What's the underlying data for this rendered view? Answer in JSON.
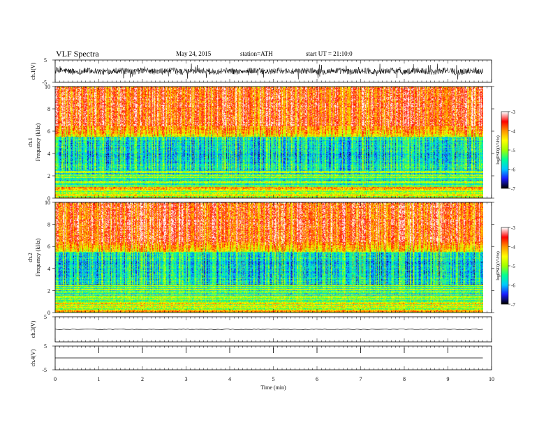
{
  "header": {
    "title": "VLF  Spectra",
    "date": "May 24, 2015",
    "station": "station=ATH",
    "start": "start  UT  =   21:10:0"
  },
  "chart_data": [
    {
      "type": "line",
      "id": "ch1",
      "ylabel": "ch.1(V)",
      "yticks": [
        "5",
        "-5"
      ],
      "ylim": [
        -5,
        5
      ],
      "description_of_signal": "noisy waveform oscillating roughly between -2 and 2 V"
    },
    {
      "type": "heatmap",
      "id": "ch1-spec",
      "ylabel": [
        "ch.1",
        "Frequency  (kHz)"
      ],
      "yticks": [
        "0",
        "2",
        "4",
        "6",
        "8",
        "10"
      ],
      "ylim": [
        0,
        10
      ],
      "colorbar": {
        "label": "log(PSD)(V²/Hz)",
        "ticks": [
          "-3",
          "-4",
          "-5",
          "-6",
          "-7"
        ],
        "range": [
          -7,
          -3
        ]
      }
    },
    {
      "type": "heatmap",
      "id": "ch2-spec",
      "ylabel": [
        "ch.2",
        "Frequency  (kHz)"
      ],
      "yticks": [
        "0",
        "2",
        "4",
        "6",
        "8",
        "10"
      ],
      "ylim": [
        0,
        10
      ],
      "colorbar": {
        "label": "log(PSD)(V²/Hz)",
        "ticks": [
          "-3",
          "-4",
          "-5",
          "-6",
          "-7"
        ],
        "range": [
          -7,
          -3
        ]
      }
    },
    {
      "type": "line",
      "id": "ch3",
      "ylabel": "ch.3(V)",
      "yticks": [
        "5"
      ],
      "ylim": [
        -5,
        5
      ],
      "level": 0
    },
    {
      "type": "line",
      "id": "ch4",
      "ylabel": "ch.4(V)",
      "yticks": [
        "5",
        "-5"
      ],
      "ylim": [
        -5,
        5
      ],
      "level": 0
    }
  ],
  "xaxis": {
    "label": "Time  (min)",
    "ticks": [
      "0",
      "1",
      "2",
      "3",
      "4",
      "5",
      "6",
      "7",
      "8",
      "9",
      "10"
    ],
    "xlim": [
      0,
      10
    ],
    "data_end": 9.8
  },
  "colors": {
    "colormap": [
      "#000000",
      "#1a1aff",
      "#00c8ff",
      "#00ff96",
      "#a0ff00",
      "#ffff00",
      "#ff9600",
      "#ff0000",
      "#ffffff"
    ]
  }
}
